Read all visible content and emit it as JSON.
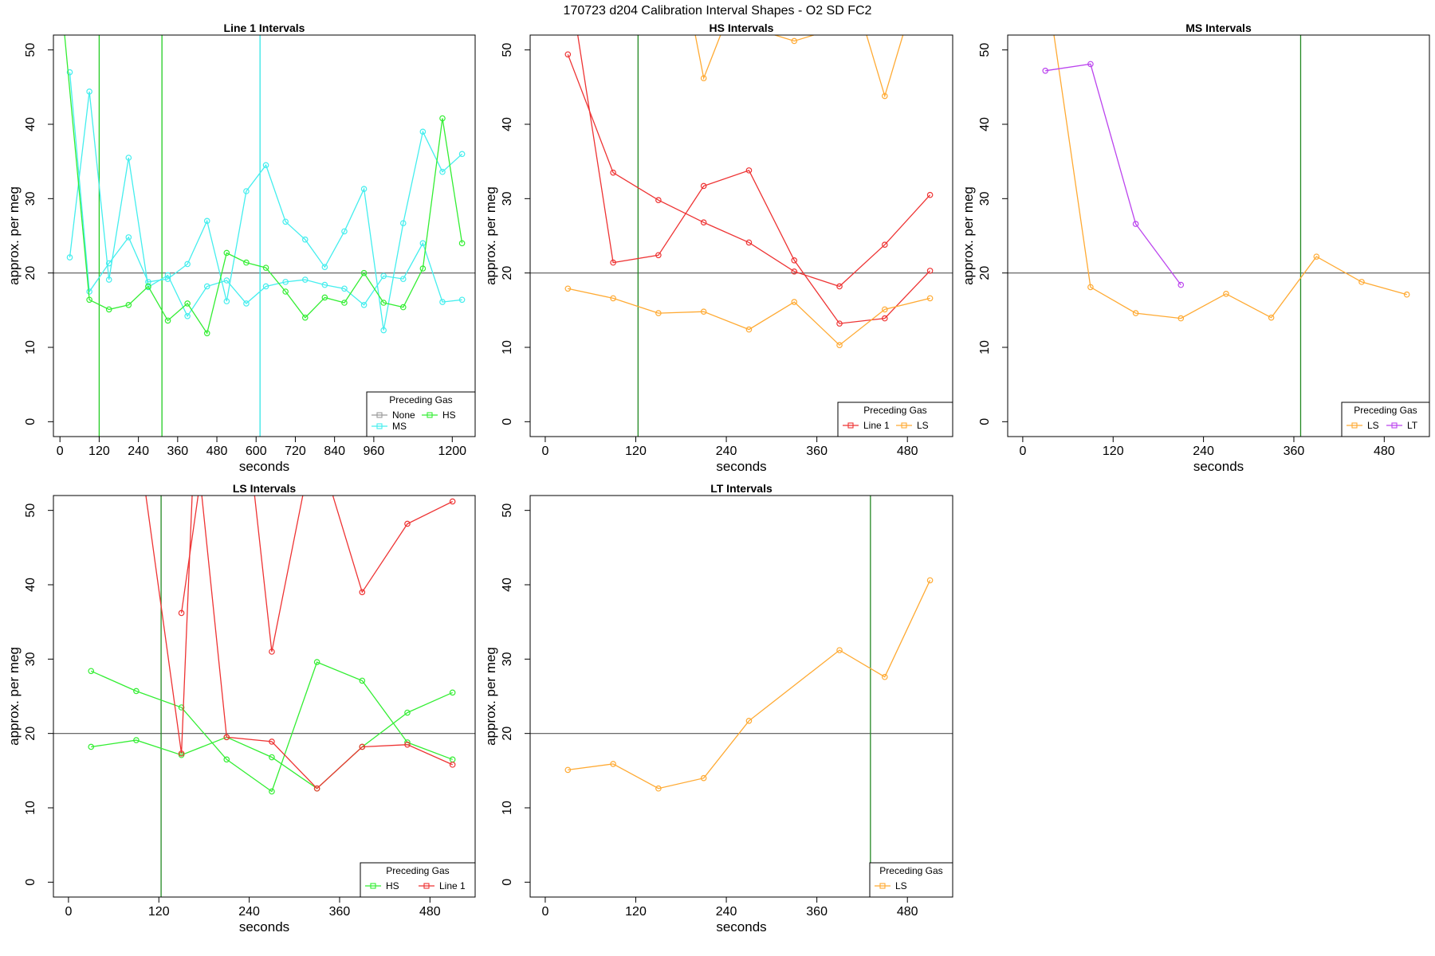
{
  "figure": {
    "title": "170723   d204   Calibration Interval Shapes - O2 SD FC2",
    "reference_line": 20
  },
  "chart_data": [
    {
      "type": "line",
      "title": "Line 1 Intervals",
      "xlabel": "seconds",
      "ylabel": "approx. per meg",
      "xlim": [
        -20,
        1270
      ],
      "ylim": [
        -2,
        52
      ],
      "xticks": [
        "0",
        "120",
        "240",
        "360",
        "480",
        "600",
        "720",
        "840",
        "960",
        "1200"
      ],
      "xtick_values": [
        0,
        120,
        240,
        360,
        480,
        600,
        720,
        840,
        960,
        1200
      ],
      "yticks": [
        "0",
        "10",
        "20",
        "30",
        "40",
        "50"
      ],
      "ytick_values": [
        0,
        10,
        20,
        30,
        40,
        50
      ],
      "vlines": [
        {
          "x": 120,
          "color": "#22cc22"
        },
        {
          "x": 312,
          "color": "#22cc22"
        },
        {
          "x": 612,
          "color": "#33e6e6"
        }
      ],
      "legend": {
        "title": "Preceding Gas",
        "position": "bottom-right",
        "entries": [
          {
            "label": "None",
            "color": "#999999"
          },
          {
            "label": "HS",
            "color": "#33ee33"
          },
          {
            "label": "MS",
            "color": "#44eeee"
          }
        ]
      },
      "series": [
        {
          "color": "#44eeee",
          "x": [
            30,
            90,
            150,
            210,
            270,
            330,
            390,
            450,
            510,
            570,
            630,
            690,
            750,
            810,
            870,
            930,
            990,
            1050,
            1110,
            1170,
            1230
          ],
          "y": [
            47,
            17.5,
            21.3,
            24.8,
            18.8,
            19.2,
            21.2,
            27,
            16.2,
            31,
            34.5,
            26.9,
            24.5,
            20.8,
            25.6,
            31.3,
            12.3,
            26.7,
            39,
            33.6,
            36
          ]
        },
        {
          "color": "#44eeee",
          "x": [
            30,
            90,
            150,
            210,
            270,
            330,
            390,
            450,
            510,
            570,
            630,
            690,
            750,
            810,
            870,
            930,
            990,
            1050,
            1110,
            1170,
            1230
          ],
          "y": [
            22.1,
            44.4,
            19.1,
            35.5,
            18.1,
            19.7,
            14.2,
            18.2,
            19,
            15.9,
            18.2,
            18.8,
            19.1,
            18.4,
            17.9,
            15.7,
            19.6,
            19.2,
            24,
            16.1,
            16.4
          ]
        },
        {
          "color": "#33ee33",
          "x": [
            10,
            90,
            150,
            210,
            270,
            330,
            390,
            450,
            510,
            570,
            630,
            690,
            750,
            810,
            870,
            930,
            990,
            1050,
            1110,
            1170,
            1230
          ],
          "y": [
            54,
            16.4,
            15.1,
            15.7,
            18.2,
            13.6,
            15.9,
            11.9,
            22.7,
            21.4,
            20.7,
            17.5,
            14,
            16.7,
            16,
            20,
            16,
            15.4,
            20.6,
            40.8,
            24
          ]
        }
      ]
    },
    {
      "type": "line",
      "title": "HS Intervals",
      "xlabel": "seconds",
      "ylabel": "approx. per meg",
      "xlim": [
        -20,
        540
      ],
      "ylim": [
        -2,
        52
      ],
      "xticks": [
        "0",
        "120",
        "240",
        "360",
        "480"
      ],
      "xtick_values": [
        0,
        120,
        240,
        360,
        480
      ],
      "yticks": [
        "0",
        "10",
        "20",
        "30",
        "40",
        "50"
      ],
      "ytick_values": [
        0,
        10,
        20,
        30,
        40,
        50
      ],
      "vlines": [
        {
          "x": 123,
          "color": "#228822"
        }
      ],
      "legend": {
        "title": "Preceding Gas",
        "position": "bottom-right",
        "entries": [
          {
            "label": "Line 1",
            "color": "#ee3333"
          },
          {
            "label": "LS",
            "color": "#ffaa33"
          }
        ]
      },
      "series": [
        {
          "color": "#ee3333",
          "x": [
            30,
            90,
            150,
            210,
            270,
            330,
            390,
            450,
            510
          ],
          "y": [
            49.4,
            33.5,
            29.8,
            26.8,
            24.1,
            20.2,
            18.2,
            23.8,
            30.5
          ]
        },
        {
          "color": "#ee3333",
          "x": [
            40,
            90,
            150,
            210,
            270,
            330,
            390,
            450,
            510
          ],
          "y": [
            54,
            21.4,
            22.4,
            31.7,
            33.8,
            21.7,
            13.2,
            13.9,
            20.3
          ]
        },
        {
          "color": "#ffaa33",
          "x": [
            30,
            90,
            150,
            210,
            270,
            330,
            390,
            450,
            510
          ],
          "y": [
            17.9,
            16.6,
            14.6,
            14.8,
            12.4,
            16.1,
            10.3,
            15.1,
            16.6
          ]
        },
        {
          "color": "#ffaa33",
          "x": [
            195,
            210,
            240,
            330,
            420,
            450,
            480
          ],
          "y": [
            54,
            46.2,
            54,
            51.2,
            54,
            43.8,
            54
          ]
        }
      ]
    },
    {
      "type": "line",
      "title": "MS Intervals",
      "xlabel": "seconds",
      "ylabel": "approx. per meg",
      "xlim": [
        -20,
        540
      ],
      "ylim": [
        -2,
        52
      ],
      "xticks": [
        "0",
        "120",
        "240",
        "360",
        "480"
      ],
      "xtick_values": [
        0,
        120,
        240,
        360,
        480
      ],
      "yticks": [
        "0",
        "10",
        "20",
        "30",
        "40",
        "50"
      ],
      "ytick_values": [
        0,
        10,
        20,
        30,
        40,
        50
      ],
      "vlines": [
        {
          "x": 369,
          "color": "#228822"
        }
      ],
      "legend": {
        "title": "Preceding Gas",
        "position": "bottom-right",
        "entries": [
          {
            "label": "LS",
            "color": "#ffaa33"
          },
          {
            "label": "LT",
            "color": "#bb44ee"
          }
        ]
      },
      "series": [
        {
          "color": "#ffaa33",
          "x": [
            30,
            90,
            150,
            210,
            270,
            330,
            390,
            450,
            510
          ],
          "y": [
            60,
            18.1,
            14.6,
            13.9,
            17.2,
            14,
            22.2,
            18.8,
            17.1
          ]
        },
        {
          "color": "#bb44ee",
          "x": [
            30,
            90,
            150,
            210
          ],
          "y": [
            47.2,
            48.1,
            26.6,
            18.4
          ]
        }
      ]
    },
    {
      "type": "line",
      "title": "LS Intervals",
      "xlabel": "seconds",
      "ylabel": "approx. per meg",
      "xlim": [
        -20,
        540
      ],
      "ylim": [
        -2,
        52
      ],
      "xticks": [
        "0",
        "120",
        "240",
        "360",
        "480"
      ],
      "xtick_values": [
        0,
        120,
        240,
        360,
        480
      ],
      "yticks": [
        "0",
        "10",
        "20",
        "30",
        "40",
        "50"
      ],
      "ytick_values": [
        0,
        10,
        20,
        30,
        40,
        50
      ],
      "vlines": [
        {
          "x": 123,
          "color": "#228822"
        }
      ],
      "legend": {
        "title": "Preceding Gas",
        "position": "bottom-right",
        "entries": [
          {
            "label": "HS",
            "color": "#33ee33"
          },
          {
            "label": "Line 1",
            "color": "#ee3333"
          }
        ]
      },
      "series": [
        {
          "color": "#33ee33",
          "x": [
            30,
            90,
            150,
            210,
            270,
            330,
            390,
            450,
            510
          ],
          "y": [
            28.4,
            25.7,
            23.5,
            16.5,
            12.2,
            29.6,
            27.1,
            18.8,
            16.5
          ]
        },
        {
          "color": "#33ee33",
          "x": [
            30,
            90,
            150,
            210,
            270,
            330,
            390,
            450,
            510
          ],
          "y": [
            18.2,
            19.1,
            17.1,
            19.5,
            16.8,
            12.6,
            18.2,
            22.8,
            25.5
          ]
        },
        {
          "color": "#ee3333",
          "x": [
            100,
            150,
            165
          ],
          "y": [
            54,
            17.3,
            54
          ]
        },
        {
          "color": "#ee3333",
          "x": [
            150,
            175,
            210,
            270,
            330,
            390,
            450,
            510
          ],
          "y": [
            36.2,
            54,
            19.5,
            18.9,
            12.6,
            18.2,
            18.5,
            15.8
          ]
        },
        {
          "color": "#ee3333",
          "x": [
            245,
            270,
            315,
            345,
            390,
            450,
            510
          ],
          "y": [
            54,
            31,
            54,
            54,
            39,
            48.2,
            51.2
          ]
        }
      ]
    },
    {
      "type": "line",
      "title": "LT Intervals",
      "xlabel": "seconds",
      "ylabel": "approx. per meg",
      "xlim": [
        -20,
        540
      ],
      "ylim": [
        -2,
        52
      ],
      "xticks": [
        "0",
        "120",
        "240",
        "360",
        "480"
      ],
      "xtick_values": [
        0,
        120,
        240,
        360,
        480
      ],
      "yticks": [
        "0",
        "10",
        "20",
        "30",
        "40",
        "50"
      ],
      "ytick_values": [
        0,
        10,
        20,
        30,
        40,
        50
      ],
      "vlines": [
        {
          "x": 431,
          "color": "#228822"
        }
      ],
      "legend": {
        "title": "Preceding Gas",
        "position": "bottom-right",
        "entries": [
          {
            "label": "LS",
            "color": "#ffaa33"
          }
        ]
      },
      "series": [
        {
          "color": "#ffaa33",
          "x": [
            30,
            90,
            150,
            210,
            270,
            390,
            450,
            510
          ],
          "y": [
            15.1,
            15.9,
            12.6,
            14,
            21.7,
            31.2,
            27.6,
            40.6
          ]
        }
      ]
    }
  ]
}
